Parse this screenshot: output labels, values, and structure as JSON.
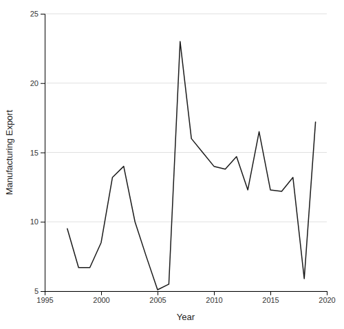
{
  "chart_data": {
    "type": "line",
    "x": [
      1997,
      1998,
      1999,
      2000,
      2001,
      2002,
      2003,
      2004,
      2005,
      2006,
      2007,
      2008,
      2009,
      2010,
      2011,
      2012,
      2013,
      2014,
      2015,
      2016,
      2017,
      2018,
      2019
    ],
    "values": [
      9.5,
      6.7,
      6.7,
      8.5,
      13.2,
      14.0,
      10.0,
      7.5,
      5.1,
      5.5,
      23.0,
      16.0,
      15.0,
      14.0,
      13.8,
      14.7,
      12.3,
      16.5,
      12.3,
      12.2,
      13.2,
      5.9,
      17.2
    ],
    "xlim": [
      1995,
      2020
    ],
    "ylim": [
      5,
      25
    ],
    "xticks": [
      1995,
      2000,
      2005,
      2010,
      2015,
      2020
    ],
    "yticks": [
      5,
      10,
      15,
      20,
      25
    ],
    "xlabel": "Year",
    "ylabel": "Manufacturing Export",
    "color": "#1a1a1a",
    "grid": "y"
  }
}
